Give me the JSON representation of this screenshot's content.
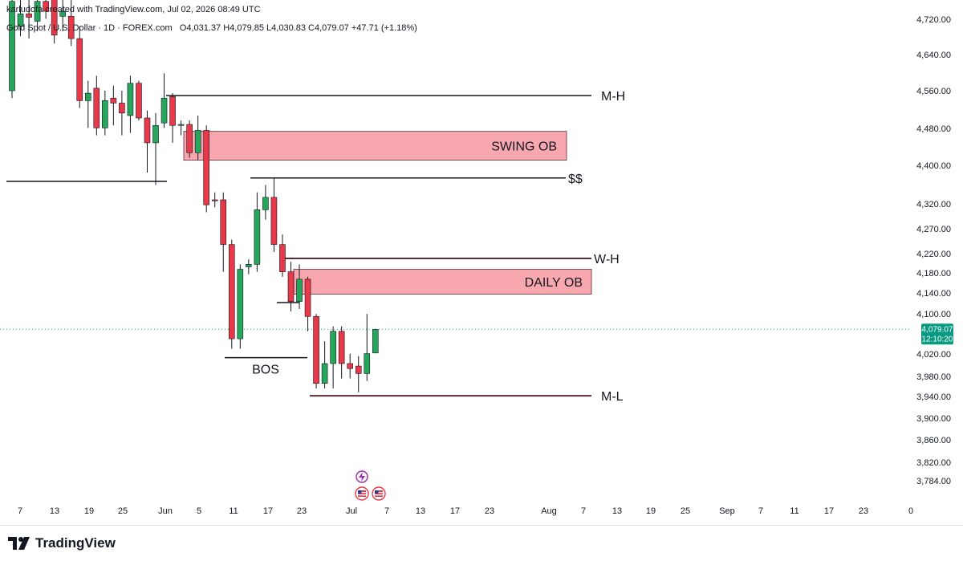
{
  "header": {
    "created_by": "karludofa created with TradingView.com, Jul 02, 2026 08:49 UTC",
    "symbol": "Gold Spot / U.S. Dollar · 1D · FOREX.com",
    "ohlc": "O4,031.37 H4,079.85 L4,030.83 C4,079.07 +47.71 (+1.18%)"
  },
  "price_label": {
    "price": "4,079.07",
    "countdown": "12:10:20"
  },
  "footer": {
    "brand": "TradingView"
  },
  "colors": {
    "up": "#26a65b",
    "down": "#e8394a",
    "ob_fill": "#f9a7ae",
    "price_line": "#26a69a",
    "label_bg": "#089981"
  },
  "chart_data": {
    "type": "candlestick",
    "y_axis_ticks": [
      "4,720.00",
      "4,640.00",
      "4,560.00",
      "4,480.00",
      "4,400.00",
      "4,320.00",
      "4,270.00",
      "4,220.00",
      "4,180.00",
      "4,140.00",
      "4,100.00",
      "4,020.00",
      "3,980.00",
      "3,940.00",
      "3,900.00",
      "3,860.00",
      "3,820.00",
      "3,784.00"
    ],
    "x_axis_ticks": [
      "7",
      "13",
      "19",
      "25",
      "Jun",
      "5",
      "11",
      "17",
      "23",
      "Jul",
      "7",
      "13",
      "17",
      "23",
      "Aug",
      "7",
      "13",
      "19",
      "25",
      "Sep",
      "7",
      "11",
      "17",
      "23",
      "0"
    ],
    "annotations": [
      {
        "label": "M-H",
        "price": 4550
      },
      {
        "label": "SWING OB",
        "price_top": 4478,
        "price_bottom": 4420
      },
      {
        "label": "$$",
        "price": 4384
      },
      {
        "label": "W-H",
        "price": 4222
      },
      {
        "label": "DAILY OB",
        "price_top": 4200,
        "price_bottom": 4150
      },
      {
        "label": "BOS",
        "price": 4030
      },
      {
        "label": "M-L",
        "price": 3945
      }
    ],
    "candles": [
      {
        "o": 4560,
        "h": 4750,
        "l": 4545,
        "c": 4740
      },
      {
        "o": 4690,
        "h": 4750,
        "l": 4670,
        "c": 4715
      },
      {
        "o": 4715,
        "h": 4745,
        "l": 4665,
        "c": 4708
      },
      {
        "o": 4700,
        "h": 4755,
        "l": 4680,
        "c": 4740
      },
      {
        "o": 4740,
        "h": 4760,
        "l": 4705,
        "c": 4720
      },
      {
        "o": 4745,
        "h": 4752,
        "l": 4655,
        "c": 4672
      },
      {
        "o": 4710,
        "h": 4760,
        "l": 4680,
        "c": 4720
      },
      {
        "o": 4710,
        "h": 4752,
        "l": 4650,
        "c": 4665
      },
      {
        "o": 4665,
        "h": 4690,
        "l": 4525,
        "c": 4540
      },
      {
        "o": 4540,
        "h": 4580,
        "l": 4485,
        "c": 4555
      },
      {
        "o": 4565,
        "h": 4590,
        "l": 4470,
        "c": 4485
      },
      {
        "o": 4485,
        "h": 4560,
        "l": 4470,
        "c": 4540
      },
      {
        "o": 4545,
        "h": 4570,
        "l": 4490,
        "c": 4535
      },
      {
        "o": 4535,
        "h": 4560,
        "l": 4470,
        "c": 4515
      },
      {
        "o": 4510,
        "h": 4590,
        "l": 4475,
        "c": 4575
      },
      {
        "o": 4575,
        "h": 4580,
        "l": 4500,
        "c": 4505
      },
      {
        "o": 4505,
        "h": 4520,
        "l": 4395,
        "c": 4455
      },
      {
        "o": 4455,
        "h": 4515,
        "l": 4370,
        "c": 4490
      },
      {
        "o": 4495,
        "h": 4595,
        "l": 4485,
        "c": 4545
      },
      {
        "o": 4548,
        "h": 4555,
        "l": 4455,
        "c": 4490
      },
      {
        "o": 4490,
        "h": 4500,
        "l": 4470,
        "c": 4492
      },
      {
        "o": 4492,
        "h": 4500,
        "l": 4425,
        "c": 4435
      },
      {
        "o": 4435,
        "h": 4510,
        "l": 4420,
        "c": 4480
      },
      {
        "o": 4480,
        "h": 4490,
        "l": 4315,
        "c": 4330
      },
      {
        "o": 4340,
        "h": 4355,
        "l": 4325,
        "c": 4338
      },
      {
        "o": 4340,
        "h": 4355,
        "l": 4195,
        "c": 4250
      },
      {
        "o": 4250,
        "h": 4260,
        "l": 4040,
        "c": 4060
      },
      {
        "o": 4060,
        "h": 4210,
        "l": 4040,
        "c": 4200
      },
      {
        "o": 4205,
        "h": 4220,
        "l": 4190,
        "c": 4210
      },
      {
        "o": 4210,
        "h": 4355,
        "l": 4195,
        "c": 4320
      },
      {
        "o": 4320,
        "h": 4370,
        "l": 4300,
        "c": 4345
      },
      {
        "o": 4345,
        "h": 4385,
        "l": 4235,
        "c": 4250
      },
      {
        "o": 4250,
        "h": 4270,
        "l": 4185,
        "c": 4195
      },
      {
        "o": 4195,
        "h": 4215,
        "l": 4115,
        "c": 4135
      },
      {
        "o": 4135,
        "h": 4210,
        "l": 4120,
        "c": 4180
      },
      {
        "o": 4180,
        "h": 4185,
        "l": 4075,
        "c": 4105
      },
      {
        "o": 4105,
        "h": 4110,
        "l": 3960,
        "c": 3970
      },
      {
        "o": 3970,
        "h": 4055,
        "l": 3960,
        "c": 4010
      },
      {
        "o": 4010,
        "h": 4085,
        "l": 3960,
        "c": 4075
      },
      {
        "o": 4075,
        "h": 4085,
        "l": 3980,
        "c": 4010
      },
      {
        "o": 4010,
        "h": 4030,
        "l": 3980,
        "c": 4000
      },
      {
        "o": 4005,
        "h": 4025,
        "l": 3952,
        "c": 3990
      },
      {
        "o": 3990,
        "h": 4110,
        "l": 3975,
        "c": 4030
      },
      {
        "o": 4031.37,
        "h": 4079.85,
        "l": 4030.83,
        "c": 4079.07
      }
    ]
  }
}
